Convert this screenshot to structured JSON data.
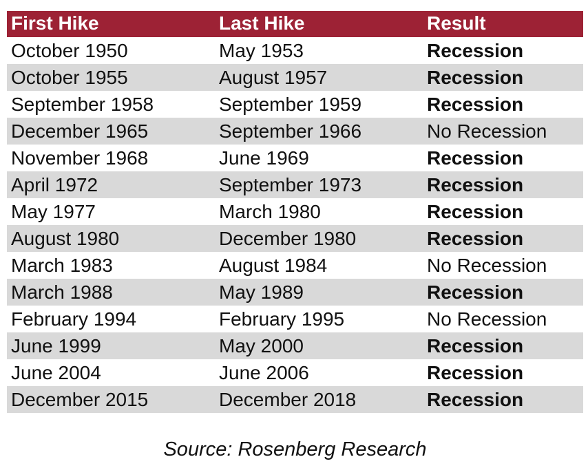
{
  "chart_data": {
    "type": "table",
    "columns": [
      "First Hike",
      "Last Hike",
      "Result"
    ],
    "rows": [
      {
        "first_hike": "October 1950",
        "last_hike": "May 1953",
        "result": "Recession",
        "result_bold": true
      },
      {
        "first_hike": "October 1955",
        "last_hike": "August 1957",
        "result": "Recession",
        "result_bold": true
      },
      {
        "first_hike": "September 1958",
        "last_hike": "September 1959",
        "result": "Recession",
        "result_bold": true
      },
      {
        "first_hike": "December 1965",
        "last_hike": "September 1966",
        "result": "No Recession",
        "result_bold": false
      },
      {
        "first_hike": "November 1968",
        "last_hike": "June 1969",
        "result": "Recession",
        "result_bold": true
      },
      {
        "first_hike": "April 1972",
        "last_hike": "September 1973",
        "result": "Recession",
        "result_bold": true
      },
      {
        "first_hike": "May 1977",
        "last_hike": "March 1980",
        "result": "Recession",
        "result_bold": true
      },
      {
        "first_hike": "August 1980",
        "last_hike": "December 1980",
        "result": "Recession",
        "result_bold": true
      },
      {
        "first_hike": "March 1983",
        "last_hike": "August 1984",
        "result": "No Recession",
        "result_bold": false
      },
      {
        "first_hike": "March 1988",
        "last_hike": "May 1989",
        "result": "Recession",
        "result_bold": true
      },
      {
        "first_hike": "February 1994",
        "last_hike": "February 1995",
        "result": "No Recession",
        "result_bold": false
      },
      {
        "first_hike": "June 1999",
        "last_hike": "May 2000",
        "result": "Recession",
        "result_bold": true
      },
      {
        "first_hike": "June 2004",
        "last_hike": "June 2006",
        "result": "Recession",
        "result_bold": true
      },
      {
        "first_hike": "December 2015",
        "last_hike": "December 2018",
        "result": "Recession",
        "result_bold": true
      }
    ],
    "caption": "Source: Rosenberg Research",
    "layout_hints": {
      "header_bg": "#9D2235",
      "header_text_color": "#FFFFFF",
      "stripe_color": "#D9D9D9",
      "body_text_color": "#111111",
      "striping": "even rows gray, odd rows white"
    }
  }
}
